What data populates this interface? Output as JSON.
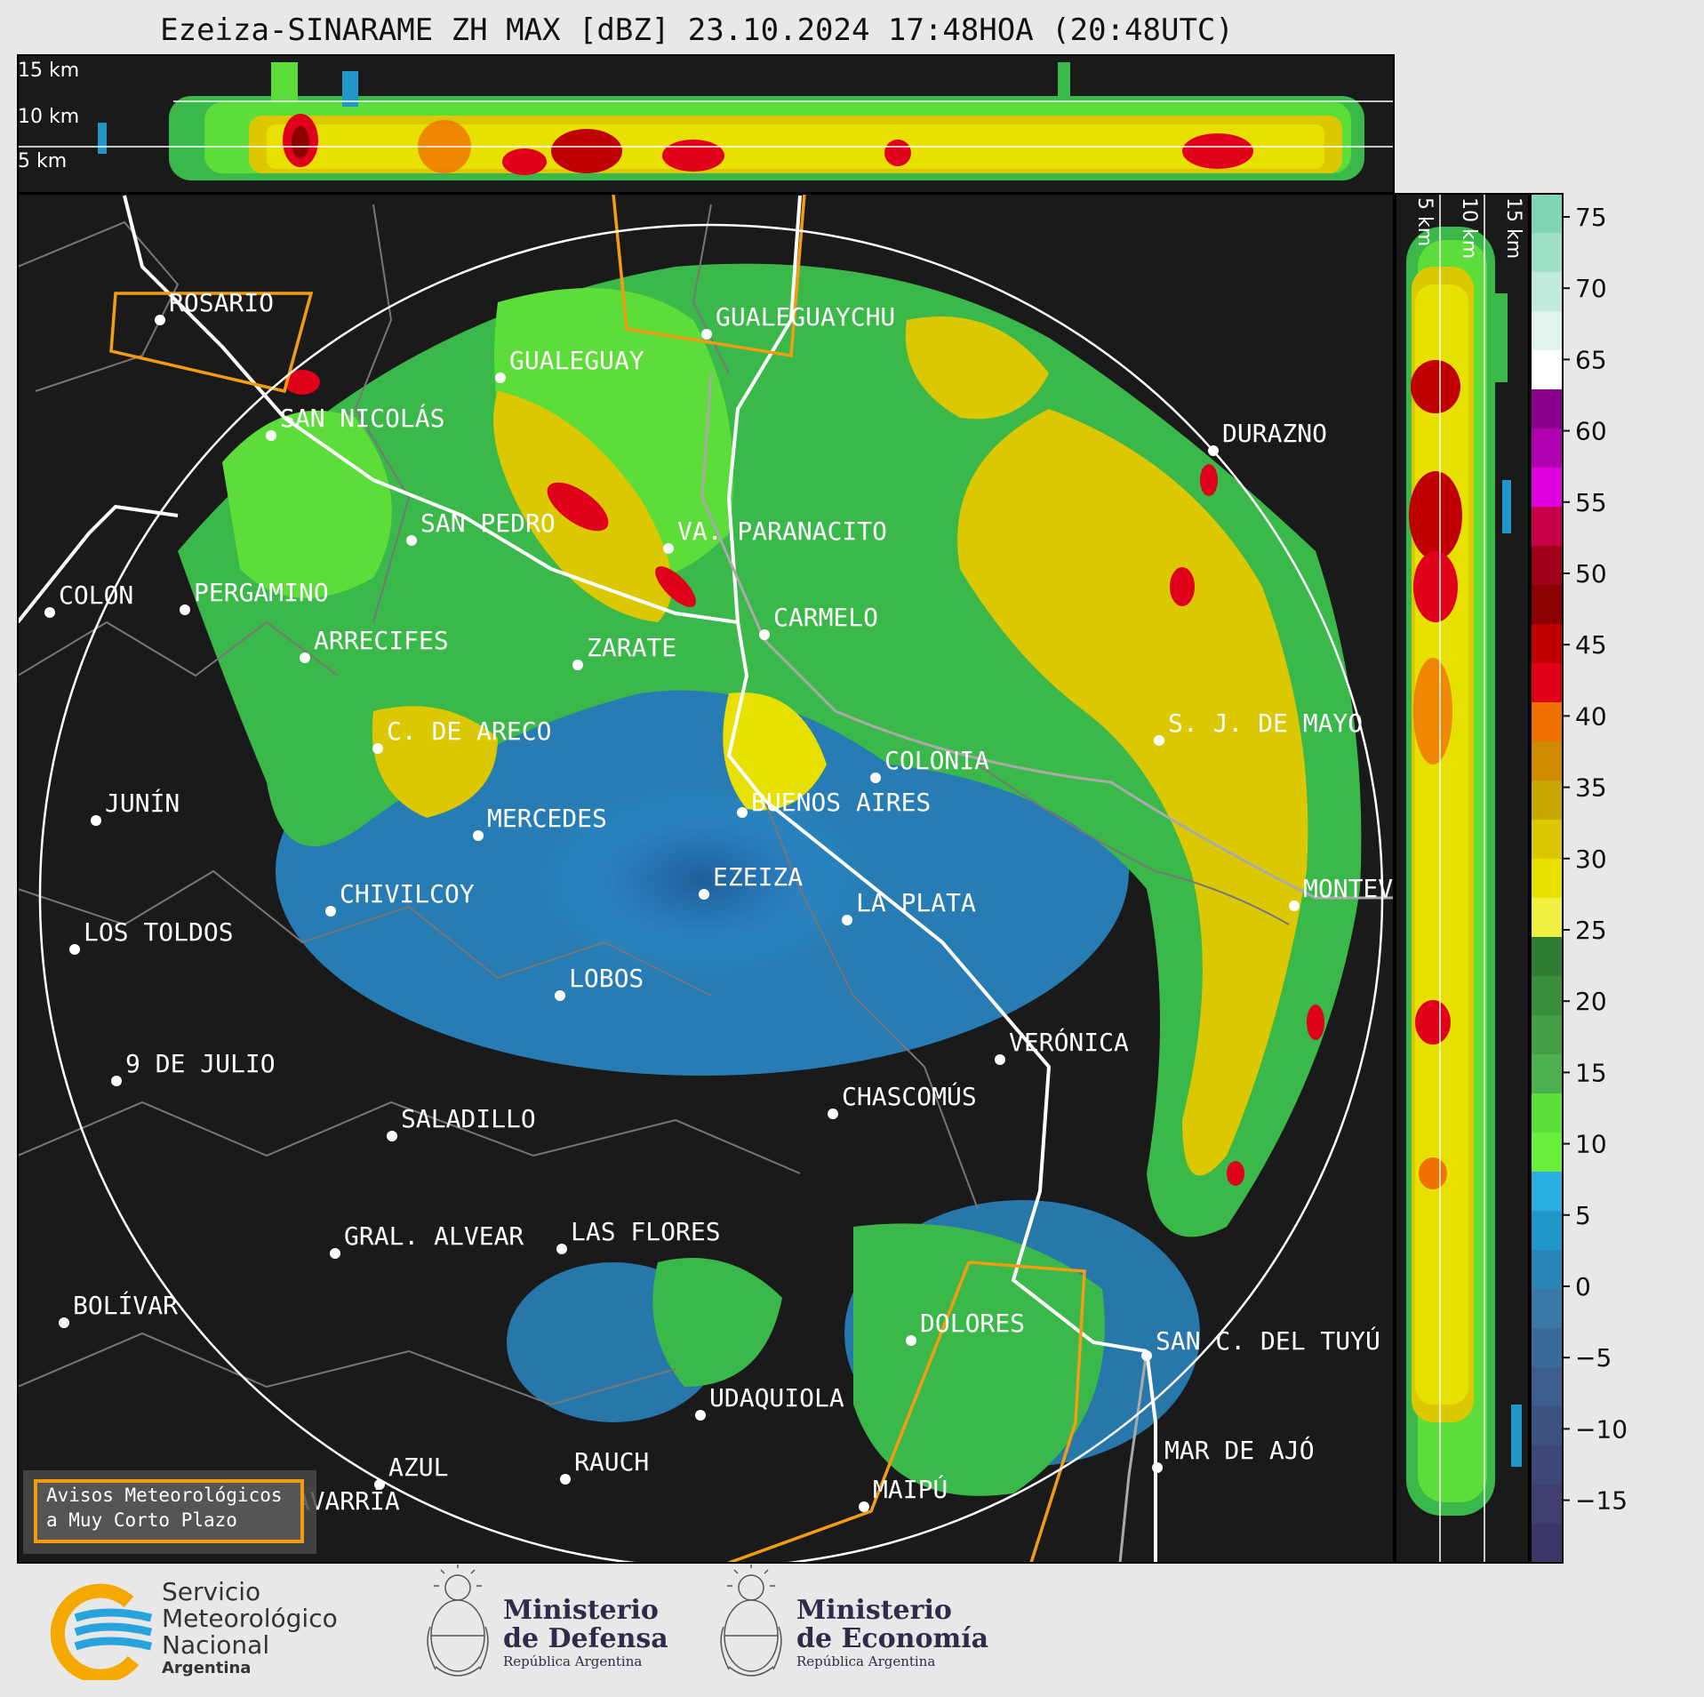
{
  "title": "Ezeiza-SINARAME ZH MAX [dBZ] 23.10.2024 17:48HOA (20:48UTC)",
  "top_panel": {
    "km_labels": [
      "15 km",
      "10 km",
      "5 km"
    ]
  },
  "side_panel": {
    "km_labels": [
      "5 km",
      "10 km",
      "15 km"
    ]
  },
  "colorbar": {
    "ticks": [
      "75",
      "70",
      "65",
      "60",
      "55",
      "50",
      "45",
      "40",
      "35",
      "30",
      "25",
      "20",
      "15",
      "10",
      "5",
      "0",
      "−5",
      "−10",
      "−15"
    ],
    "colors_top_to_bottom": [
      "#7fd6b4",
      "#a0e0c4",
      "#c0eadc",
      "#e0f4ee",
      "#ffffff",
      "#8b008b",
      "#b000b0",
      "#e000e0",
      "#c8004a",
      "#a00018",
      "#8b0000",
      "#c00000",
      "#e0001a",
      "#f07000",
      "#d08a00",
      "#c8a800",
      "#dcc800",
      "#e8e000",
      "#f0f040",
      "#2e7d32",
      "#388e3c",
      "#43a047",
      "#4caf50",
      "#5cdd3a",
      "#6aed3c",
      "#2ab0e0",
      "#2196c8",
      "#2a86b8",
      "#3a78a8",
      "#3a6a98",
      "#3c5e8c",
      "#3d5280",
      "#3e4878",
      "#3f4070",
      "#3a3868"
    ]
  },
  "cities": [
    {
      "name": "ROSARIO"
    },
    {
      "name": "SAN NICOLÁS"
    },
    {
      "name": "GUALEGUAY"
    },
    {
      "name": "GUALEGUAYCHU"
    },
    {
      "name": "SAN PEDRO"
    },
    {
      "name": "VA. PARANACITO"
    },
    {
      "name": "COLON"
    },
    {
      "name": "PERGAMINO"
    },
    {
      "name": "ARRECIFES"
    },
    {
      "name": "ZARATE"
    },
    {
      "name": "CARMELO"
    },
    {
      "name": "DURAZNO"
    },
    {
      "name": "C. DE ARECO"
    },
    {
      "name": "S. J. DE MAYO"
    },
    {
      "name": "COLONIA"
    },
    {
      "name": "BUENOS AIRES"
    },
    {
      "name": "JUNÍN"
    },
    {
      "name": "MERCEDES"
    },
    {
      "name": "EZEIZA"
    },
    {
      "name": "CHIVILCOY"
    },
    {
      "name": "LA PLATA"
    },
    {
      "name": "MONTEV"
    },
    {
      "name": "LOS TOLDOS"
    },
    {
      "name": "LOBOS"
    },
    {
      "name": "VERÓNICA"
    },
    {
      "name": "9 DE JULIO"
    },
    {
      "name": "CHASCOMÚS"
    },
    {
      "name": "SALADILLO"
    },
    {
      "name": "GRAL. ALVEAR"
    },
    {
      "name": "LAS FLORES"
    },
    {
      "name": "BOLÍVAR"
    },
    {
      "name": "DOLORES"
    },
    {
      "name": "SAN C. DEL TUYÚ"
    },
    {
      "name": "UDAQUIOLA"
    },
    {
      "name": "MAR DE AJÓ"
    },
    {
      "name": "AZUL"
    },
    {
      "name": "RAUCH"
    },
    {
      "name": "OLAVARRÍA"
    },
    {
      "name": "MAIPÚ"
    }
  ],
  "warning_box": {
    "line1": "Avisos Meteorológicos",
    "line2": "a Muy Corto Plazo"
  },
  "footer": {
    "smn": {
      "line1": "Servicio",
      "line2": "Meteorológico",
      "line3": "Nacional",
      "line4": "Argentina"
    },
    "defensa": {
      "line1": "Ministerio",
      "line2": "de Defensa",
      "sub": "República Argentina"
    },
    "economia": {
      "line1": "Ministerio",
      "line2": "de Economía",
      "sub": "República Argentina"
    }
  }
}
